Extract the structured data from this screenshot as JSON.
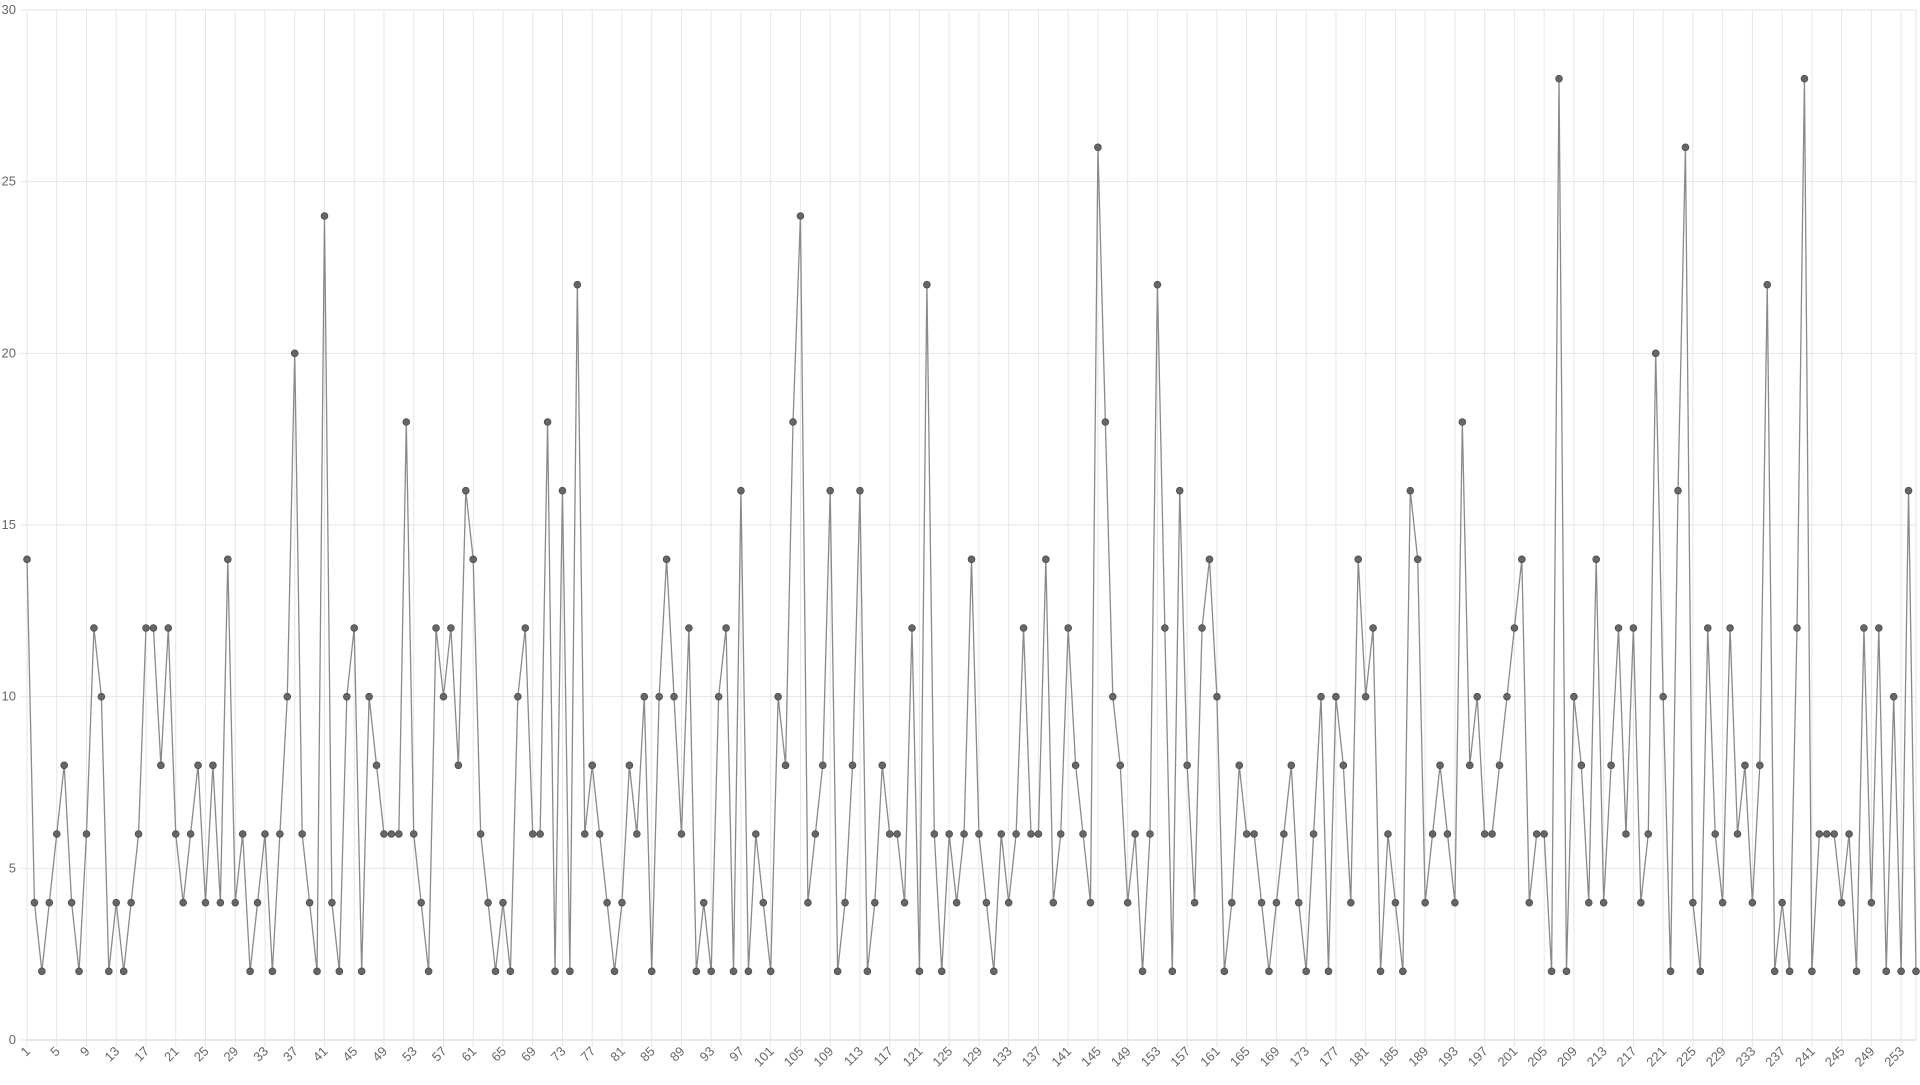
{
  "chart_data": {
    "type": "line",
    "title": "",
    "xlabel": "",
    "ylabel": "",
    "x_start": 1,
    "x_tick_step": 4,
    "ylim": [
      0,
      30
    ],
    "y_ticks": [
      "0",
      "5",
      "10",
      "15",
      "20",
      "25",
      "30"
    ],
    "grid": true,
    "series": [
      {
        "values": [
          14,
          4,
          2,
          4,
          6,
          8,
          4,
          2,
          6,
          12,
          10,
          2,
          4,
          2,
          4,
          6,
          12,
          12,
          8,
          12,
          6,
          4,
          6,
          8,
          4,
          8,
          4,
          14,
          4,
          6,
          2,
          4,
          6,
          2,
          6,
          10,
          20,
          6,
          4,
          2,
          24,
          4,
          2,
          10,
          12,
          2,
          10,
          8,
          6,
          6,
          6,
          18,
          6,
          4,
          2,
          12,
          10,
          12,
          8,
          16,
          14,
          6,
          4,
          2,
          4,
          2,
          10,
          12,
          6,
          6,
          18,
          2,
          16,
          2,
          22,
          6,
          8,
          6,
          4,
          2,
          4,
          8,
          6,
          10,
          2,
          10,
          14,
          10,
          6,
          12,
          2,
          4,
          2,
          10,
          12,
          2,
          16,
          2,
          6,
          4,
          2,
          10,
          8,
          18,
          24,
          4,
          6,
          8,
          16,
          2,
          4,
          8,
          16,
          2,
          4,
          8,
          6,
          6,
          4,
          12,
          2,
          22,
          6,
          2,
          6,
          4,
          6,
          14,
          6,
          4,
          2,
          6,
          4,
          6,
          12,
          6,
          6,
          14,
          4,
          6,
          12,
          8,
          6,
          4,
          26,
          18,
          10,
          8,
          4,
          6,
          2,
          6,
          22,
          12,
          2,
          16,
          8,
          4,
          12,
          14,
          10,
          2,
          4,
          8,
          6,
          6,
          4,
          2,
          4,
          6,
          8,
          4,
          2,
          6,
          10,
          2,
          10,
          8,
          4,
          14,
          10,
          12,
          2,
          6,
          4,
          2,
          16,
          14,
          4,
          6,
          8,
          6,
          4,
          18,
          8,
          10,
          6,
          6,
          8,
          10,
          12,
          14,
          4,
          6,
          6,
          2,
          28,
          2,
          10,
          8,
          4,
          14,
          4,
          8,
          12,
          6,
          12,
          4,
          6,
          20,
          10,
          2,
          16,
          26,
          4,
          2,
          12,
          6,
          4,
          12,
          6,
          8,
          4,
          8,
          22,
          2,
          4,
          2,
          12,
          28,
          2,
          6,
          6,
          6,
          4,
          6,
          2,
          12,
          4,
          12,
          2,
          10,
          2,
          16,
          2
        ]
      }
    ],
    "colors": {
      "line": "#8a8a8a",
      "point": "#666666",
      "grid": "#e6e6e6",
      "axis": "#cccccc",
      "tick_text": "#666666"
    }
  }
}
